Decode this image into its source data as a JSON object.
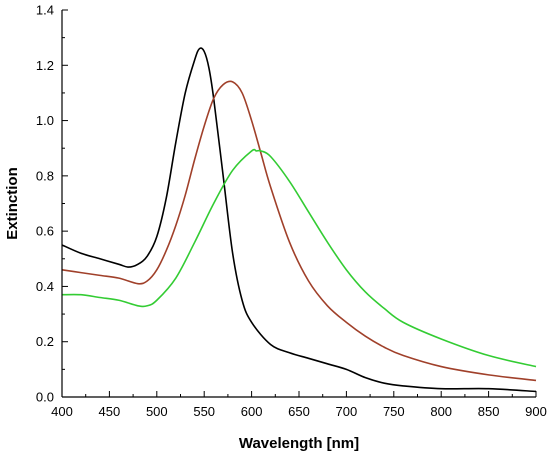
{
  "chart_data": {
    "type": "line",
    "title": "",
    "xlabel": "Wavelength [nm]",
    "ylabel": "Extinction",
    "xlim": [
      400,
      900
    ],
    "ylim": [
      0.0,
      1.4
    ],
    "x_ticks": [
      400,
      450,
      500,
      550,
      600,
      650,
      700,
      750,
      800,
      850,
      900
    ],
    "y_ticks": [
      0.0,
      0.2,
      0.4,
      0.6,
      0.8,
      1.0,
      1.2,
      1.4
    ],
    "x_tick_labels": [
      "400",
      "450",
      "500",
      "550",
      "600",
      "650",
      "700",
      "750",
      "800",
      "850",
      "900"
    ],
    "y_tick_labels": [
      "0.0",
      "0.2",
      "0.4",
      "0.6",
      "0.8",
      "1.0",
      "1.2",
      "1.4"
    ],
    "grid": false,
    "legend": "none",
    "series": [
      {
        "color": "#000000",
        "x": [
          400,
          420,
          440,
          460,
          470,
          480,
          490,
          500,
          510,
          520,
          530,
          540,
          545,
          550,
          555,
          560,
          570,
          580,
          590,
          600,
          620,
          640,
          660,
          680,
          700,
          720,
          740,
          760,
          800,
          850,
          900
        ],
        "y": [
          0.55,
          0.52,
          0.5,
          0.48,
          0.47,
          0.48,
          0.51,
          0.58,
          0.72,
          0.92,
          1.1,
          1.22,
          1.26,
          1.25,
          1.19,
          1.08,
          0.8,
          0.52,
          0.35,
          0.27,
          0.19,
          0.16,
          0.14,
          0.12,
          0.1,
          0.07,
          0.05,
          0.04,
          0.03,
          0.03,
          0.02
        ]
      },
      {
        "color": "#a0402a",
        "x": [
          400,
          420,
          440,
          460,
          480,
          490,
          500,
          510,
          520,
          530,
          540,
          550,
          560,
          570,
          580,
          590,
          600,
          610,
          620,
          640,
          660,
          680,
          700,
          720,
          740,
          760,
          800,
          850,
          900
        ],
        "y": [
          0.46,
          0.45,
          0.44,
          0.43,
          0.41,
          0.42,
          0.46,
          0.53,
          0.62,
          0.73,
          0.86,
          0.98,
          1.08,
          1.13,
          1.14,
          1.1,
          1.0,
          0.88,
          0.76,
          0.56,
          0.42,
          0.33,
          0.27,
          0.22,
          0.18,
          0.15,
          0.11,
          0.08,
          0.06
        ]
      },
      {
        "color": "#33cc33",
        "x": [
          400,
          420,
          440,
          460,
          480,
          490,
          500,
          520,
          540,
          560,
          580,
          600,
          605,
          610,
          620,
          640,
          660,
          680,
          700,
          720,
          740,
          760,
          800,
          850,
          900
        ],
        "y": [
          0.37,
          0.37,
          0.36,
          0.35,
          0.33,
          0.33,
          0.35,
          0.43,
          0.56,
          0.7,
          0.82,
          0.89,
          0.89,
          0.89,
          0.87,
          0.78,
          0.67,
          0.56,
          0.46,
          0.38,
          0.32,
          0.27,
          0.21,
          0.15,
          0.11
        ]
      }
    ]
  }
}
